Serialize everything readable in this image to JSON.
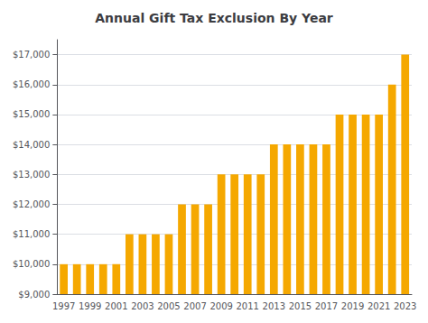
{
  "chart_data": {
    "type": "bar",
    "title": "Annual Gift Tax Exclusion By Year",
    "categories": [
      "1997",
      null,
      "1999",
      null,
      "2001",
      null,
      "2003",
      null,
      "2005",
      null,
      "2007",
      null,
      "2009",
      null,
      "2011",
      null,
      "2013",
      null,
      "2015",
      null,
      "2017",
      null,
      "2019",
      null,
      "2021",
      null,
      "2023"
    ],
    "values": [
      10000,
      10000,
      10000,
      10000,
      10000,
      11000,
      11000,
      11000,
      11000,
      12000,
      12000,
      12000,
      13000,
      13000,
      13000,
      13000,
      14000,
      14000,
      14000,
      14000,
      14000,
      15000,
      15000,
      15000,
      15000,
      16000,
      17000
    ],
    "color": "#F5A800",
    "ylim": [
      9000,
      17500
    ],
    "yticks": [
      {
        "value": 9000,
        "label": "$9,000"
      },
      {
        "value": 10000,
        "label": "$10,000"
      },
      {
        "value": 11000,
        "label": "$11,000"
      },
      {
        "value": 12000,
        "label": "$12,000"
      },
      {
        "value": 13000,
        "label": "$13,000"
      },
      {
        "value": 14000,
        "label": "$14,000"
      },
      {
        "value": 15000,
        "label": "$15,000"
      },
      {
        "value": 16000,
        "label": "$16,000"
      },
      {
        "value": 17000,
        "label": "$17,000"
      }
    ],
    "grid": true
  }
}
